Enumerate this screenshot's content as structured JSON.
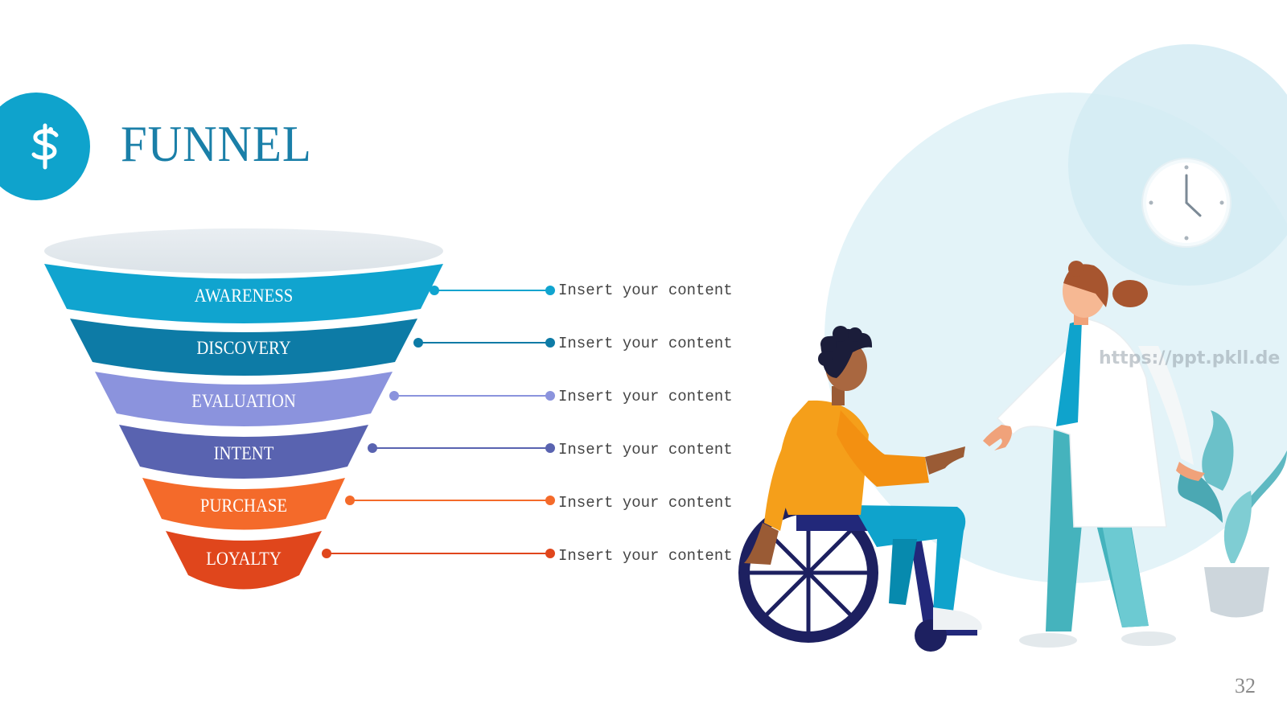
{
  "slide": {
    "title": "FUNNEL",
    "page_number": "32",
    "watermark": "https://ppt.pkll.de"
  },
  "logo": {
    "icon": "caduceus-dollar-icon",
    "color": "#0fa3cc"
  },
  "funnel": {
    "stages": [
      {
        "label": "AWARENESS",
        "color": "#10a4cf",
        "content": "Insert your content"
      },
      {
        "label": "DISCOVERY",
        "color": "#0d7ba6",
        "content": "Insert your content"
      },
      {
        "label": "EVALUATION",
        "color": "#8b93dd",
        "content": "Insert your content"
      },
      {
        "label": "INTENT",
        "color": "#5963b0",
        "content": "Insert your content"
      },
      {
        "label": "PURCHASE",
        "color": "#f46a2a",
        "content": "Insert your content"
      },
      {
        "label": "LOYALTY",
        "color": "#e0461c",
        "content": "Insert your content"
      }
    ]
  },
  "illustration": {
    "description_icons": [
      "clock-icon",
      "wheelchair-user-figure",
      "doctor-figure",
      "plant-icon"
    ],
    "background_color": "#dcf0f5"
  }
}
